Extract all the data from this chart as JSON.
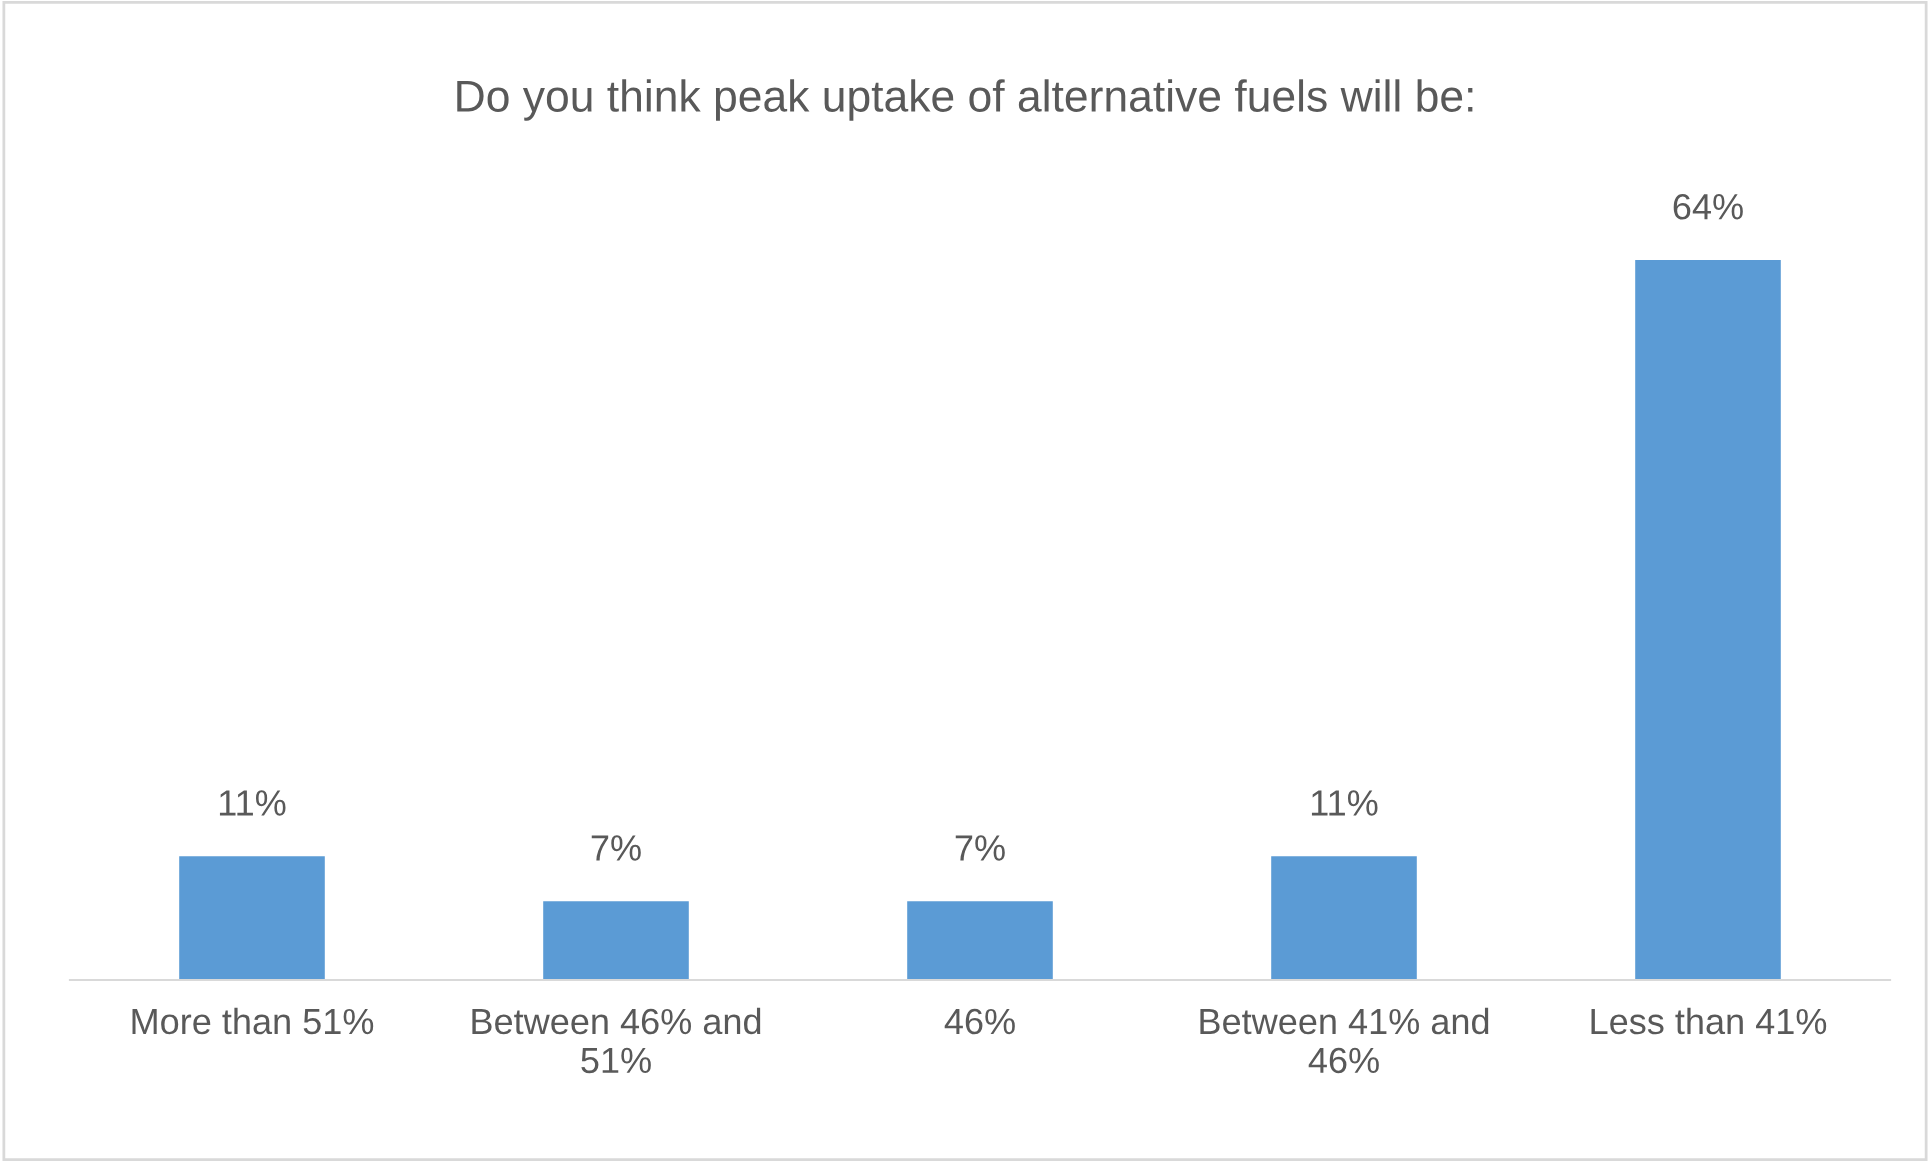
{
  "chart_data": {
    "type": "bar",
    "title": "Do you think peak uptake of alternative fuels will be:",
    "categories": [
      "More than 51%",
      "Between 46% and\n51%",
      "46%",
      "Between 41% and\n46%",
      "Less than 41%"
    ],
    "values": [
      11,
      7,
      7,
      11,
      64
    ],
    "value_labels": [
      "11%",
      "7%",
      "7%",
      "11%",
      "64%"
    ],
    "color": "#5b9bd5",
    "grid": false,
    "legend": false,
    "tick_labels": "x"
  }
}
